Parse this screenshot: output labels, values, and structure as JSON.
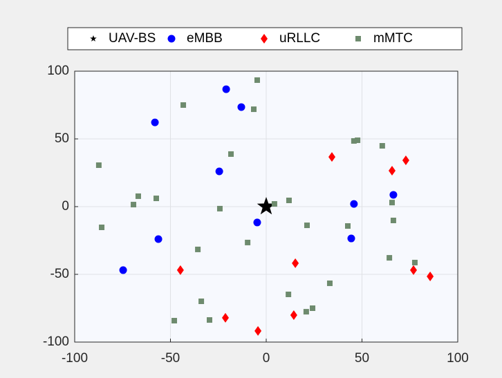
{
  "chart_data": {
    "type": "scatter",
    "legend": "north-outside",
    "grid": true,
    "xlim": [
      -100,
      100
    ],
    "xticks": [
      -100,
      -50,
      0,
      50,
      100
    ],
    "ylim": [
      -100,
      100
    ],
    "yticks": [
      -100,
      -50,
      0,
      50,
      100
    ],
    "series": [
      {
        "name": "UAV-BS",
        "color": "#000000",
        "marker": "star",
        "x": [
          0
        ],
        "y": [
          0
        ]
      },
      {
        "name": "eMBB",
        "color": "#0000ff",
        "marker": "circle",
        "x": [
          -20.9,
          -13,
          -58.1,
          -24.5,
          66.4,
          45.8,
          -4.7,
          -56.3,
          44.4,
          -74.7
        ],
        "y": [
          86.7,
          73.5,
          62.2,
          26,
          8.7,
          2,
          -11.7,
          -24,
          -23.5,
          -46.9
        ]
      },
      {
        "name": "uRLLC",
        "color": "#ff0000",
        "marker": "diamond",
        "x": [
          34.3,
          65.7,
          72.9,
          15.2,
          -44.8,
          76.9,
          85.6,
          -21.3,
          14.4,
          -4.3
        ],
        "y": [
          36.7,
          26.5,
          34.2,
          -41.8,
          -46.9,
          -46.9,
          -51.5,
          -82.1,
          -80.1,
          -91.8
        ]
      },
      {
        "name": "mMTC",
        "color": "#6e8b6e",
        "marker": "square",
        "x": [
          -4.7,
          -6.5,
          -43.3,
          -18.4,
          -87.4,
          45.8,
          47.7,
          60.6,
          -66.8,
          -69.3,
          -57.4,
          -24.2,
          4.3,
          11.9,
          65.7,
          66.4,
          -85.9,
          21.3,
          42.6,
          -35.7,
          -9.7,
          64.3,
          77.6,
          33.2,
          -33.9,
          11.6,
          20.9,
          24.2,
          -29.6,
          -48
        ],
        "y": [
          93.4,
          71.9,
          75,
          38.8,
          30.6,
          48.5,
          49,
          44.9,
          7.7,
          1.5,
          6.1,
          -1.5,
          2,
          4.6,
          3,
          -10.2,
          -15.3,
          -13.8,
          -14.3,
          -31.6,
          -26.5,
          -37.8,
          -41.3,
          -56.6,
          -69.9,
          -64.8,
          -77.6,
          -75,
          -83.7,
          -84.2
        ]
      }
    ]
  }
}
